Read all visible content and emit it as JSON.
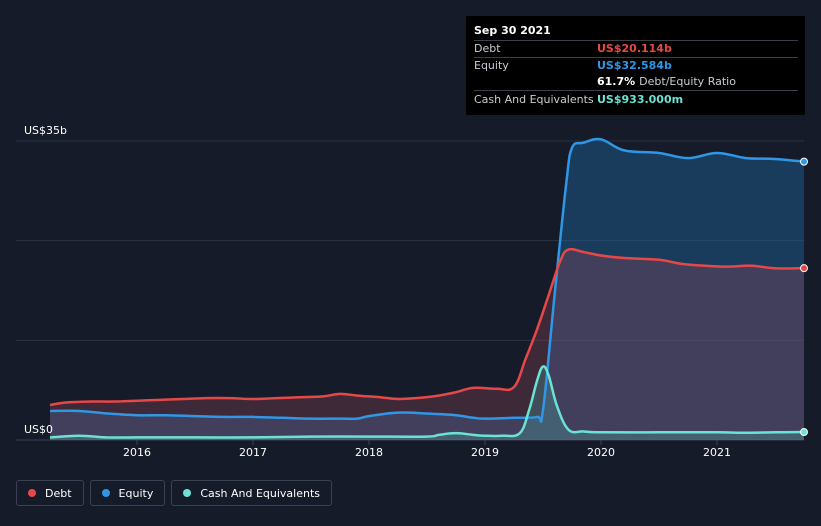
{
  "tooltip": {
    "date": "Sep 30 2021",
    "debt_label": "Debt",
    "debt_value": "US$20.114b",
    "equity_label": "Equity",
    "equity_value": "US$32.584b",
    "ratio_value": "61.7%",
    "ratio_label": "Debt/Equity Ratio",
    "cash_label": "Cash And Equivalents",
    "cash_value": "US$933.000m"
  },
  "legend": {
    "debt": "Debt",
    "equity": "Equity",
    "cash": "Cash And Equivalents"
  },
  "colors": {
    "background": "#151b28",
    "debt": "#e64848",
    "equity": "#2f97e6",
    "cash": "#6be3d2",
    "grid": "#2c3340"
  },
  "chart_data": {
    "type": "area",
    "y_unit": "US$ billions",
    "ylim": [
      0,
      35
    ],
    "y_tick_labels": [
      {
        "value": 35,
        "label": "US$35b"
      },
      {
        "value": 0,
        "label": "US$0"
      }
    ],
    "x_ticks": [
      2016,
      2017,
      2018,
      2019,
      2020,
      2021
    ],
    "xlim": [
      2015.25,
      2021.75
    ],
    "grid": true,
    "legend_position": "bottom-left",
    "series": [
      {
        "name": "Debt",
        "key": "debt",
        "x": [
          2015.25,
          2015.4,
          2015.6,
          2015.8,
          2016.0,
          2016.2,
          2016.4,
          2016.6,
          2016.8,
          2017.0,
          2017.2,
          2017.4,
          2017.6,
          2017.75,
          2017.9,
          2018.1,
          2018.25,
          2018.4,
          2018.6,
          2018.75,
          2018.9,
          2019.1,
          2019.25,
          2019.35,
          2019.45,
          2019.55,
          2019.65,
          2019.72,
          2019.85,
          2020.0,
          2020.2,
          2020.5,
          2020.7,
          2020.9,
          2021.1,
          2021.3,
          2021.5,
          2021.75
        ],
        "values": [
          4.1,
          4.4,
          4.5,
          4.5,
          4.6,
          4.7,
          4.8,
          4.9,
          4.9,
          4.8,
          4.9,
          5.0,
          5.1,
          5.4,
          5.2,
          5.0,
          4.8,
          4.9,
          5.2,
          5.6,
          6.1,
          6.0,
          6.2,
          9.5,
          13.0,
          17.0,
          21.0,
          22.3,
          22.0,
          21.6,
          21.3,
          21.1,
          20.6,
          20.4,
          20.3,
          20.4,
          20.1,
          20.114
        ]
      },
      {
        "name": "Equity",
        "key": "equity",
        "x": [
          2015.25,
          2015.5,
          2015.75,
          2016.0,
          2016.25,
          2016.5,
          2016.75,
          2017.0,
          2017.25,
          2017.5,
          2017.75,
          2017.9,
          2018.0,
          2018.25,
          2018.5,
          2018.75,
          2018.9,
          2019.0,
          2019.25,
          2019.45,
          2019.5,
          2019.6,
          2019.7,
          2019.75,
          2019.85,
          2020.0,
          2020.2,
          2020.5,
          2020.75,
          2021.0,
          2021.25,
          2021.5,
          2021.75
        ],
        "values": [
          3.4,
          3.4,
          3.1,
          2.9,
          2.9,
          2.8,
          2.7,
          2.7,
          2.6,
          2.5,
          2.5,
          2.5,
          2.8,
          3.2,
          3.1,
          2.9,
          2.6,
          2.5,
          2.6,
          2.7,
          3.5,
          17.0,
          30.0,
          34.2,
          34.8,
          35.2,
          33.9,
          33.6,
          33.0,
          33.6,
          33.0,
          32.9,
          32.584
        ]
      },
      {
        "name": "Cash And Equivalents",
        "key": "cash",
        "x": [
          2015.25,
          2015.5,
          2015.75,
          2016.0,
          2016.5,
          2017.0,
          2017.5,
          2018.0,
          2018.5,
          2018.6,
          2018.75,
          2018.9,
          2019.0,
          2019.15,
          2019.3,
          2019.38,
          2019.45,
          2019.5,
          2019.55,
          2019.62,
          2019.72,
          2019.85,
          2020.0,
          2020.5,
          2021.0,
          2021.25,
          2021.5,
          2021.75
        ],
        "values": [
          0.3,
          0.5,
          0.3,
          0.3,
          0.3,
          0.3,
          0.4,
          0.4,
          0.4,
          0.6,
          0.8,
          0.6,
          0.5,
          0.5,
          0.8,
          3.5,
          7.0,
          8.6,
          7.5,
          4.0,
          1.2,
          1.0,
          0.9,
          0.9,
          0.9,
          0.85,
          0.9,
          0.933
        ]
      }
    ]
  }
}
